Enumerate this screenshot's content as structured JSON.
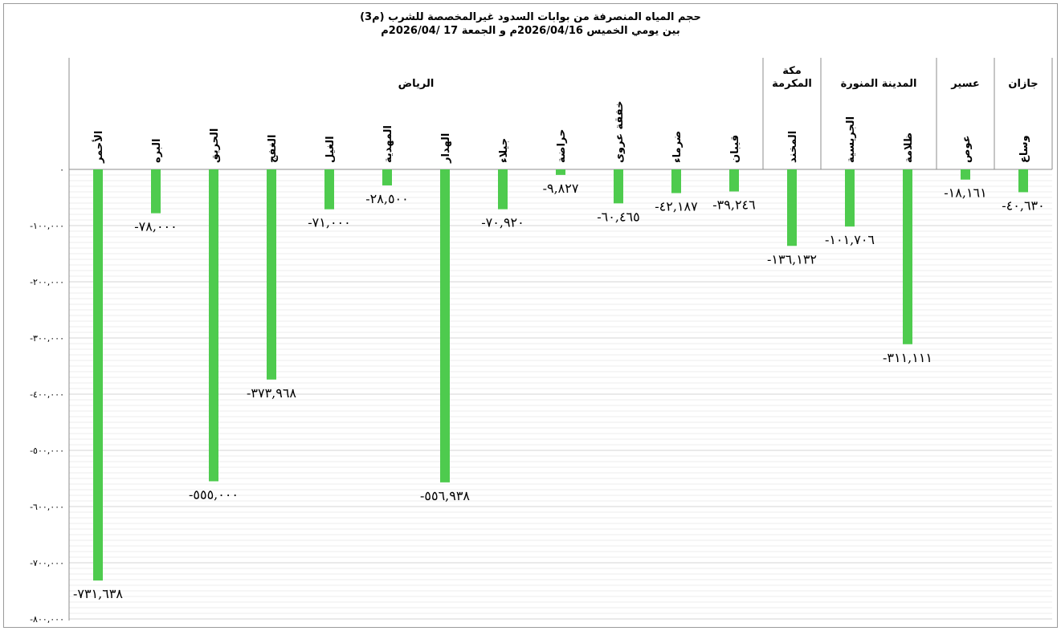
{
  "chart_data": {
    "type": "bar",
    "title_lines": [
      "حجم المياه المنصرفة من بوابات السدود غيرالمخصصة للشرب (م3)",
      "بين يومي الخميس 2026/04/16م و الجمعة 17 /2026/04م"
    ],
    "xlabel": "",
    "ylabel": "",
    "ylim": [
      -800000,
      0
    ],
    "yticks": [
      0,
      -100000,
      -200000,
      -300000,
      -400000,
      -500000,
      -600000,
      -700000,
      -800000
    ],
    "ytick_labels": [
      "٠",
      "-١٠٠,٠٠٠",
      "-٢٠٠,٠٠٠",
      "-٣٠٠,٠٠٠",
      "-٤٠٠,٠٠٠",
      "-٥٠٠,٠٠٠",
      "-٦٠٠,٠٠٠",
      "-٧٠٠,٠٠٠",
      "-٨٠٠,٠٠٠"
    ],
    "grid": true,
    "bar_color": "#4ecb4e",
    "regions": [
      {
        "name": "الرياض",
        "count": 12
      },
      {
        "name": "مكة المكرمة",
        "count": 1
      },
      {
        "name": "المدينة المنورة",
        "count": 2
      },
      {
        "name": "عسير",
        "count": 1
      },
      {
        "name": "جازان",
        "count": 1
      }
    ],
    "categories": [
      "الأحمر",
      "البره",
      "الحريق",
      "الغفج",
      "الغيل",
      "المهدية",
      "الهدار",
      "جيلاء",
      "حراضة",
      "خفقة عروى",
      "ضرماء",
      "قيبان",
      "المخند",
      "الجريسية",
      "ظلامة",
      "عوص",
      "وساع"
    ],
    "values": [
      -731638,
      -78000,
      -555000,
      -373968,
      -71000,
      -28500,
      -556938,
      -70920,
      -9827,
      -60465,
      -42187,
      -39246,
      -136132,
      -101706,
      -311111,
      -18161,
      -40630
    ],
    "value_labels": [
      "-٧٣١,٦٣٨",
      "-٧٨,٠٠٠",
      "-٥٥٥,٠٠٠",
      "-٣٧٣,٩٦٨",
      "-٧١,٠٠٠",
      "-٢٨,٥٠٠",
      "-٥٥٦,٩٣٨",
      "-٧٠,٩٢٠",
      "-٩,٨٢٧",
      "-٦٠,٤٦٥",
      "-٤٢,١٨٧",
      "-٣٩,٢٤٦",
      "-١٣٦,١٣٢",
      "-١٠١,٧٠٦",
      "-٣١١,١١١",
      "-١٨,١٦١",
      "-٤٠,٦٣٠"
    ]
  }
}
